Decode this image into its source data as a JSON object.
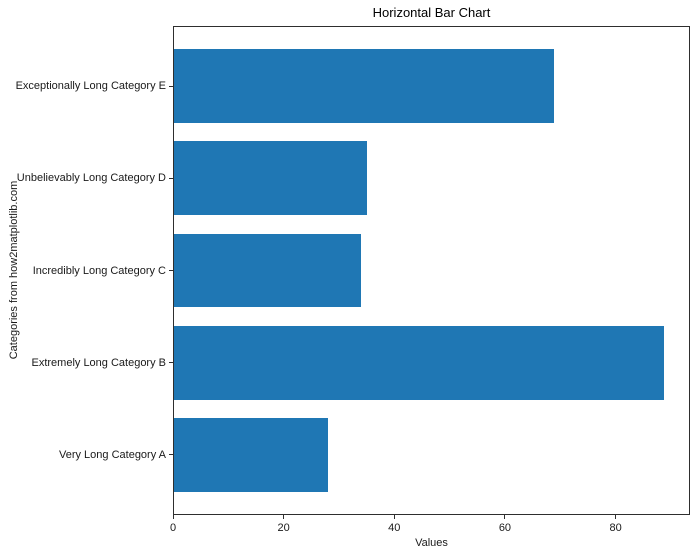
{
  "chart_data": {
    "type": "bar",
    "orientation": "horizontal",
    "title": "Horizontal Bar Chart",
    "xlabel": "Values",
    "ylabel": "Categories from how2matplotlib.com",
    "categories": [
      "Very Long Category A",
      "Extremely Long Category B",
      "Incredibly Long Category C",
      "Unbelievably Long Category D",
      "Exceptionally Long Category E"
    ],
    "category_order": "bottom_to_top",
    "values": [
      28,
      89,
      34,
      35,
      69
    ],
    "bar_color": "#1f77b4",
    "xticks": [
      0,
      20,
      40,
      60,
      80
    ],
    "xlim": [
      0,
      93.45
    ],
    "grid": false,
    "legend_position": "none",
    "background_color": "#ffffff",
    "spine_color": "#2e2e2e"
  }
}
